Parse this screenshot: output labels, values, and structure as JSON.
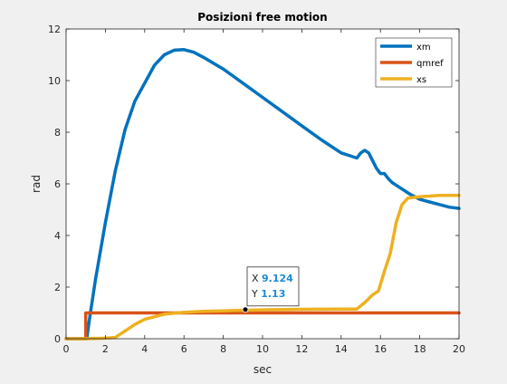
{
  "chart_data": {
    "type": "line",
    "title": "Posizioni free motion",
    "xlabel": "sec",
    "ylabel": "rad",
    "xlim": [
      0,
      20
    ],
    "ylim": [
      0,
      12
    ],
    "xticks": [
      0,
      2,
      4,
      6,
      8,
      10,
      12,
      14,
      16,
      18,
      20
    ],
    "yticks": [
      0,
      2,
      4,
      6,
      8,
      10,
      12
    ],
    "grid": false,
    "legend_position": "top-right",
    "series": [
      {
        "name": "xm",
        "color": "#0072BD",
        "x": [
          0,
          1.05,
          1.2,
          1.5,
          2.0,
          2.5,
          3.0,
          3.5,
          4.0,
          4.5,
          5.0,
          5.5,
          6.0,
          6.5,
          7.0,
          8.0,
          9.0,
          10.0,
          11.0,
          12.0,
          13.0,
          14.0,
          14.8,
          15.0,
          15.2,
          15.4,
          15.6,
          15.8,
          16.0,
          16.2,
          16.4,
          16.6,
          17.0,
          17.5,
          18.0,
          18.5,
          19.0,
          19.5,
          20.0
        ],
        "y": [
          0,
          0,
          0.8,
          2.3,
          4.5,
          6.5,
          8.1,
          9.2,
          9.9,
          10.6,
          11.0,
          11.18,
          11.2,
          11.1,
          10.9,
          10.45,
          9.9,
          9.35,
          8.8,
          8.25,
          7.7,
          7.2,
          7.0,
          7.2,
          7.3,
          7.2,
          6.9,
          6.6,
          6.4,
          6.4,
          6.2,
          6.05,
          5.85,
          5.6,
          5.4,
          5.3,
          5.2,
          5.1,
          5.05
        ]
      },
      {
        "name": "qmref",
        "color": "#D95319",
        "x": [
          0,
          1.0,
          1.0,
          20
        ],
        "y": [
          0,
          0,
          1,
          1
        ]
      },
      {
        "name": "xs",
        "color": "#EDB120",
        "x": [
          0,
          1.0,
          2.0,
          2.5,
          2.8,
          3.5,
          4.0,
          5.0,
          6.0,
          7.0,
          8.0,
          9.0,
          10.0,
          12.0,
          14.0,
          14.8,
          15.2,
          15.6,
          15.9,
          16.2,
          16.5,
          16.8,
          17.1,
          17.4,
          18.0,
          19.0,
          20.0
        ],
        "y": [
          0,
          0,
          0.02,
          0.05,
          0.2,
          0.55,
          0.75,
          0.95,
          1.02,
          1.06,
          1.08,
          1.1,
          1.12,
          1.14,
          1.15,
          1.15,
          1.4,
          1.7,
          1.85,
          2.6,
          3.3,
          4.5,
          5.2,
          5.45,
          5.5,
          5.55,
          5.55
        ]
      }
    ],
    "datatip": {
      "x_label": "X",
      "x_value": "9.124",
      "y_label": "Y",
      "y_value": "1.13",
      "x": 9.124,
      "y": 1.13
    }
  }
}
